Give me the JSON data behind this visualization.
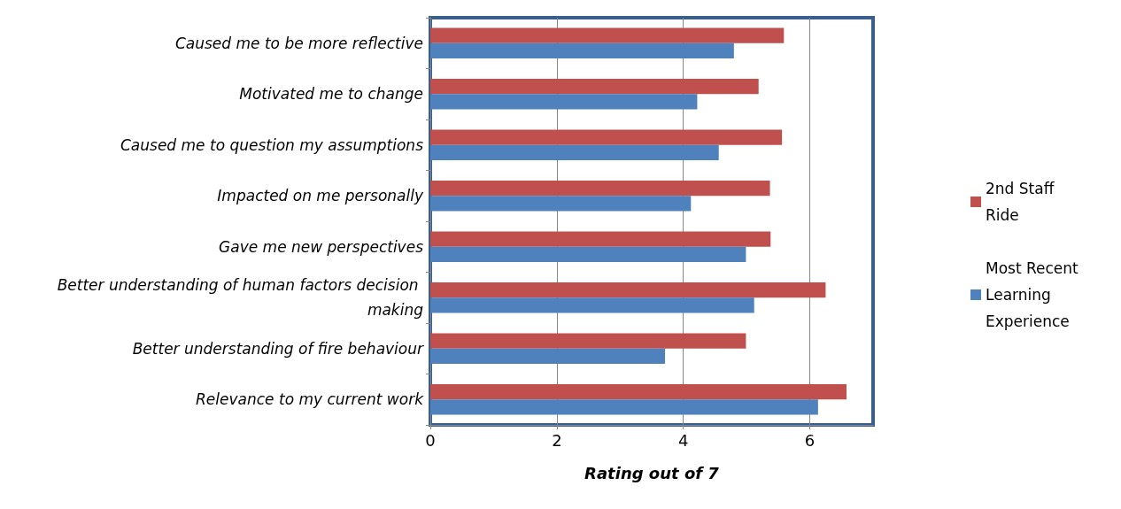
{
  "chart_data": {
    "type": "bar",
    "orientation": "horizontal",
    "xlabel": "Rating out of 7",
    "categories": [
      "Caused me to be more reflective",
      "Motivated me to change",
      "Caused me to question my assumptions",
      "Impacted on me personally",
      "Gave me new perspectives",
      "Better understanding of human factors decision making",
      "Better understanding of fire behaviour",
      "Relevance to my current work"
    ],
    "series": [
      {
        "name": "2nd Staff Ride",
        "color": "#c0504d",
        "values": [
          5.59,
          5.19,
          5.56,
          5.37,
          5.38,
          6.25,
          4.99,
          6.58
        ]
      },
      {
        "name": "Most Recent Learning Experience",
        "color": "#4f81bd",
        "values": [
          4.8,
          4.22,
          4.56,
          4.12,
          4.99,
          5.12,
          3.71,
          6.13
        ]
      }
    ],
    "xlim": [
      0,
      7
    ],
    "xticks": [
      0,
      2,
      4,
      6
    ],
    "grid": "x",
    "legend": "right"
  }
}
